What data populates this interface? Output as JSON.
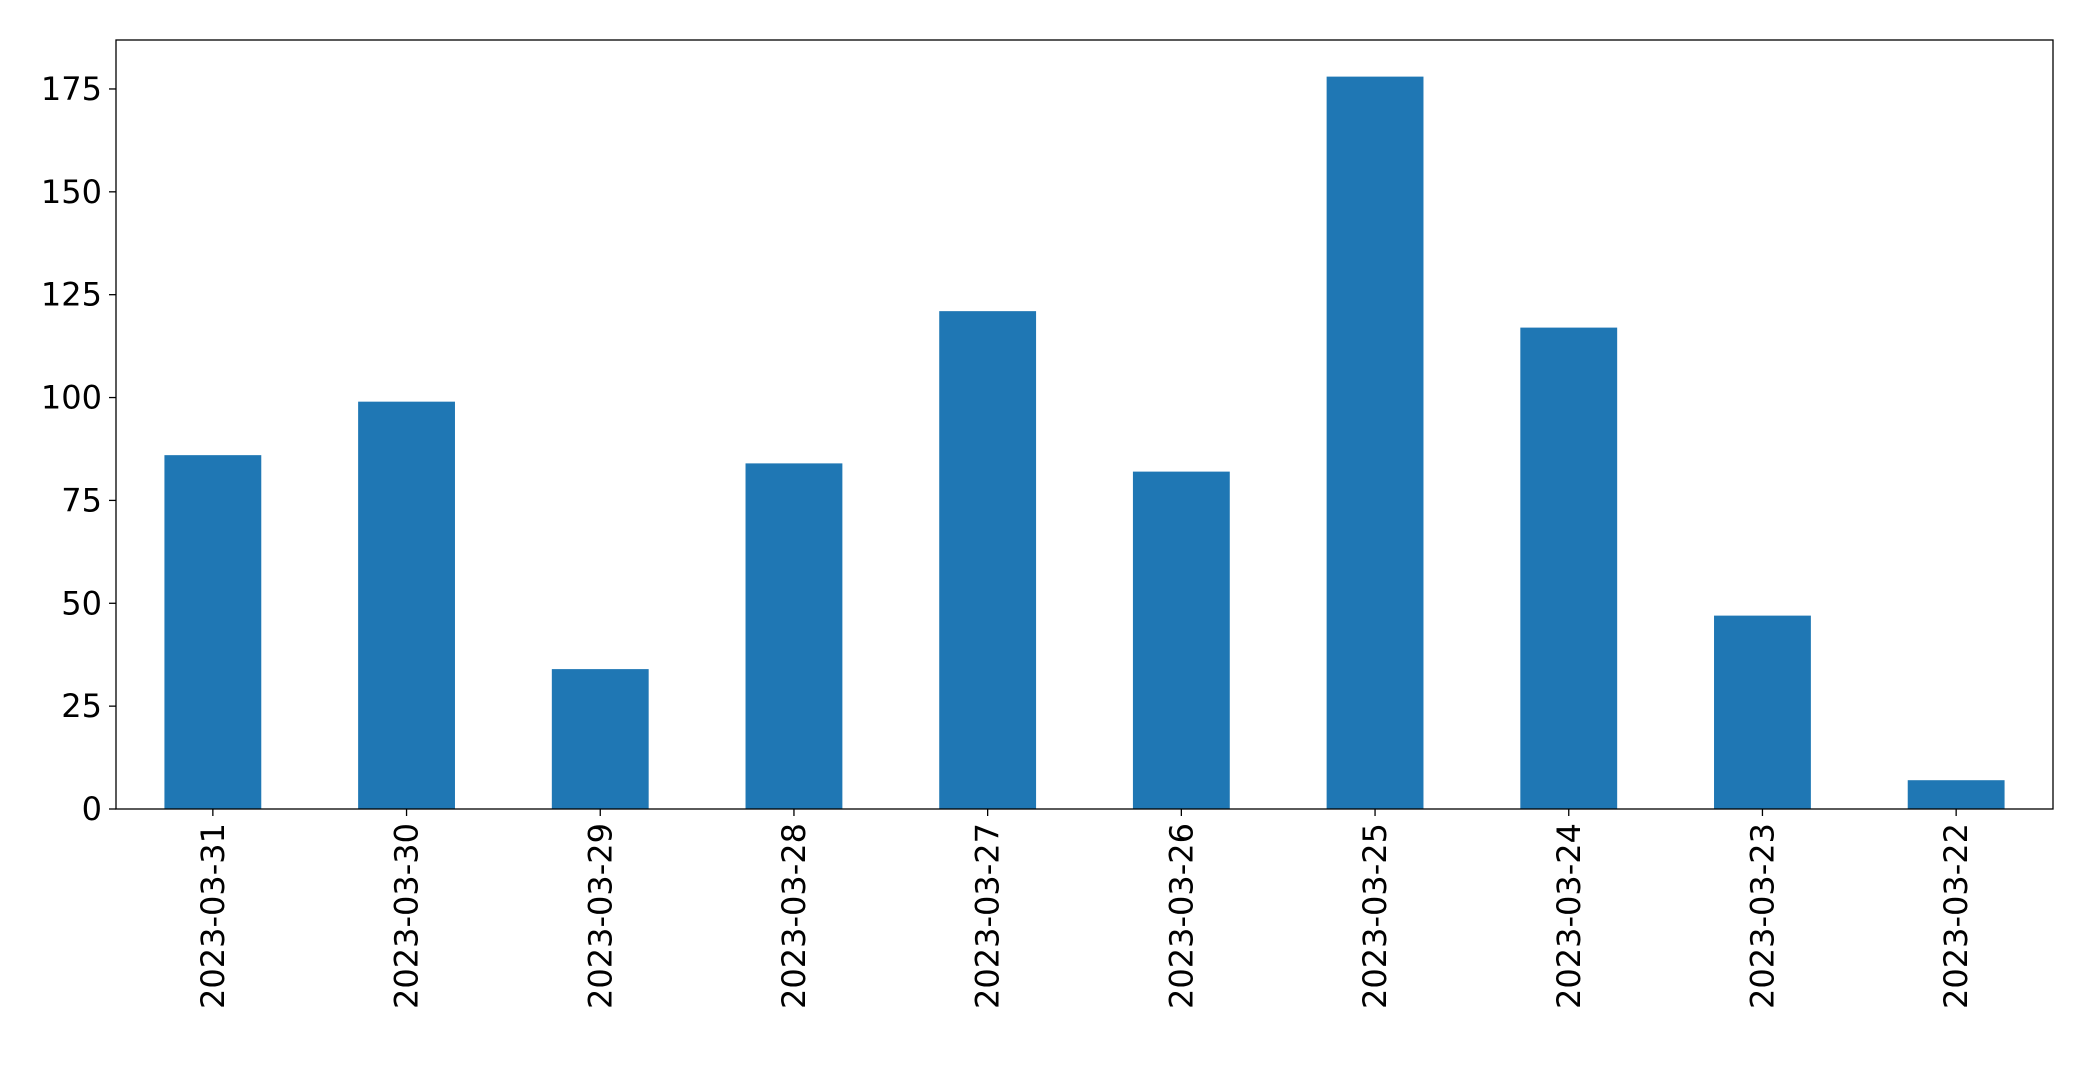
{
  "chart_data": {
    "type": "bar",
    "categories": [
      "2023-03-31",
      "2023-03-30",
      "2023-03-29",
      "2023-03-28",
      "2023-03-27",
      "2023-03-26",
      "2023-03-25",
      "2023-03-24",
      "2023-03-23",
      "2023-03-22"
    ],
    "values": [
      86,
      99,
      34,
      84,
      121,
      82,
      178,
      117,
      47,
      7
    ],
    "color": "#1f77b4",
    "ylim": [
      0,
      186.9
    ],
    "yticks": [
      0,
      25,
      50,
      75,
      100,
      125,
      150,
      175
    ],
    "grid": false
  }
}
